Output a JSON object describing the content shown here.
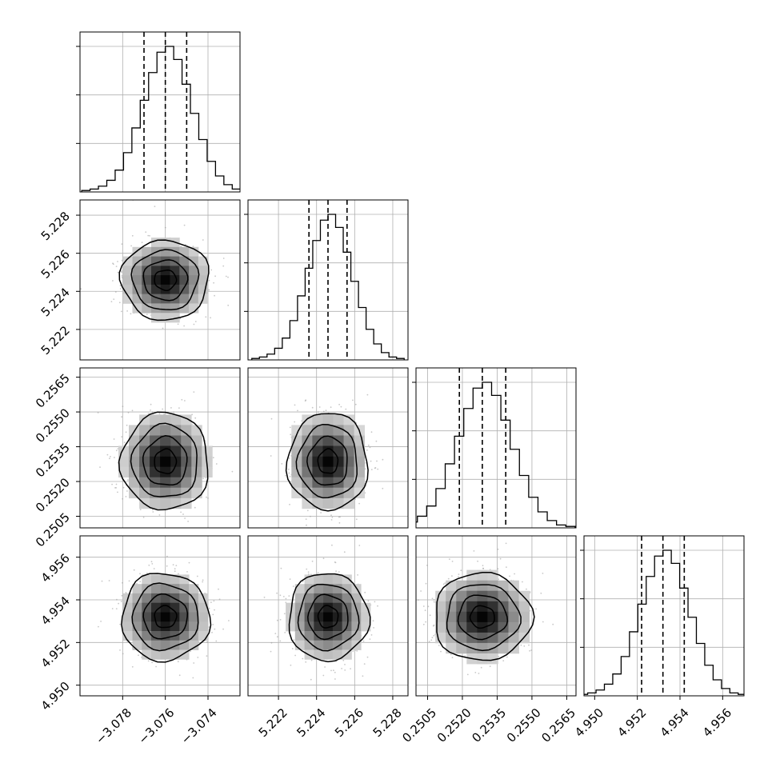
{
  "chart_data": {
    "type": "corner",
    "n_params": 4,
    "parameters": [
      {
        "index": 0,
        "median": -3.076,
        "q16": -3.077,
        "q84": -3.075,
        "range": [
          -3.08,
          -3.0725
        ],
        "sigma": 0.00098,
        "ticks": [
          -3.078,
          -3.076,
          -3.074
        ],
        "tick_labels": [
          "−3.078",
          "−3.076",
          "−3.074"
        ]
      },
      {
        "index": 1,
        "median": 5.2246,
        "q16": 5.2236,
        "q84": 5.2256,
        "range": [
          5.2204,
          5.2288
        ],
        "sigma": 0.001,
        "ticks": [
          5.222,
          5.224,
          5.226,
          5.228
        ],
        "tick_labels": [
          "5.222",
          "5.224",
          "5.226",
          "5.228"
        ]
      },
      {
        "index": 2,
        "median": 0.25286,
        "q16": 0.25187,
        "q84": 0.25387,
        "range": [
          0.25,
          0.2569
        ],
        "sigma": 0.001,
        "ticks": [
          0.2505,
          0.252,
          0.2535,
          0.255,
          0.2565
        ],
        "tick_labels": [
          "0.2505",
          "0.2520",
          "0.2535",
          "0.2550",
          "0.2565"
        ]
      },
      {
        "index": 3,
        "median": 4.9532,
        "q16": 4.9522,
        "q84": 4.9542,
        "range": [
          4.9495,
          4.957
        ],
        "sigma": 0.00098,
        "ticks": [
          4.95,
          4.952,
          4.954,
          4.956
        ],
        "tick_labels": [
          "4.950",
          "4.952",
          "4.954",
          "4.956"
        ]
      }
    ],
    "histogram": {
      "bins": 20,
      "relative_counts": [
        0.01,
        0.02,
        0.04,
        0.08,
        0.15,
        0.27,
        0.44,
        0.63,
        0.82,
        0.96,
        1.0,
        0.91,
        0.74,
        0.54,
        0.36,
        0.21,
        0.11,
        0.05,
        0.02,
        0.01
      ]
    },
    "contour_levels_sigma": [
      0.5,
      1.0,
      1.5,
      2.0
    ],
    "quantiles": [
      0.16,
      0.5,
      0.84
    ],
    "grid": true,
    "axis_labels": [
      "",
      "",
      "",
      ""
    ],
    "title": ""
  }
}
